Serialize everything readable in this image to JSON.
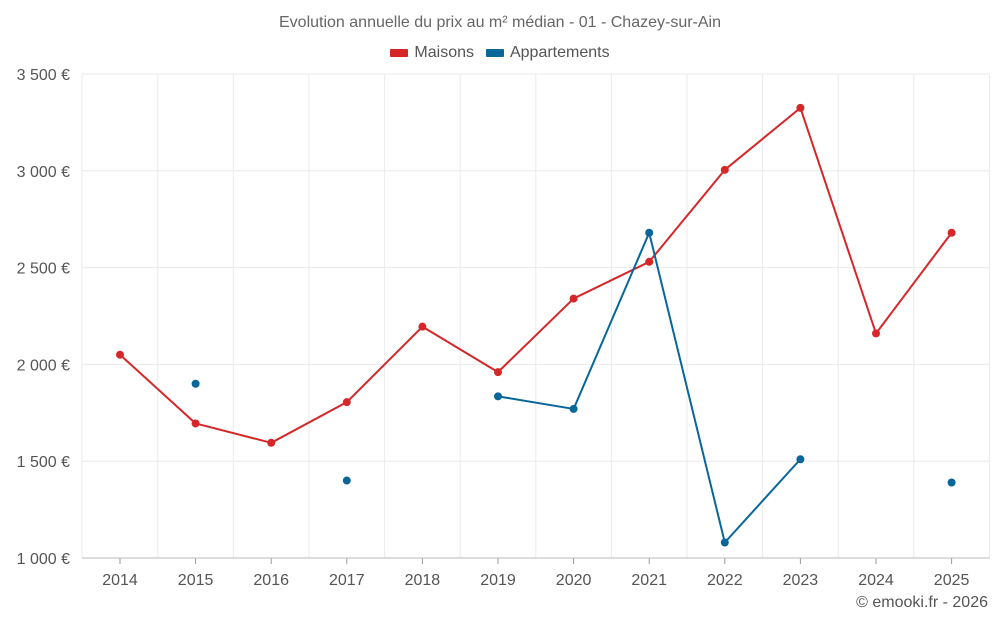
{
  "chart_data": {
    "type": "line",
    "title": "Evolution annuelle du prix au m² médian - 01 - Chazey-sur-Ain",
    "xlabel": "",
    "ylabel": "",
    "categories": [
      "2014",
      "2015",
      "2016",
      "2017",
      "2018",
      "2019",
      "2020",
      "2021",
      "2022",
      "2023",
      "2024",
      "2025"
    ],
    "ylim": [
      1000,
      3500
    ],
    "yticks": [
      1000,
      1500,
      2000,
      2500,
      3000,
      3500
    ],
    "ytick_labels": [
      "1 000 €",
      "1 500 €",
      "2 000 €",
      "2 500 €",
      "3 000 €",
      "3 500 €"
    ],
    "grid": true,
    "legend_position": "top-center",
    "series": [
      {
        "name": "Maisons",
        "color": "#d62728",
        "values": [
          2050,
          1695,
          1595,
          1805,
          2195,
          1960,
          2340,
          2530,
          3005,
          3325,
          2160,
          2680
        ]
      },
      {
        "name": "Appartements",
        "color": "#08669a",
        "values": [
          null,
          1900,
          null,
          1400,
          null,
          1835,
          1770,
          2680,
          1080,
          1510,
          null,
          1390
        ]
      }
    ]
  },
  "credit": "© emooki.fr - 2026"
}
